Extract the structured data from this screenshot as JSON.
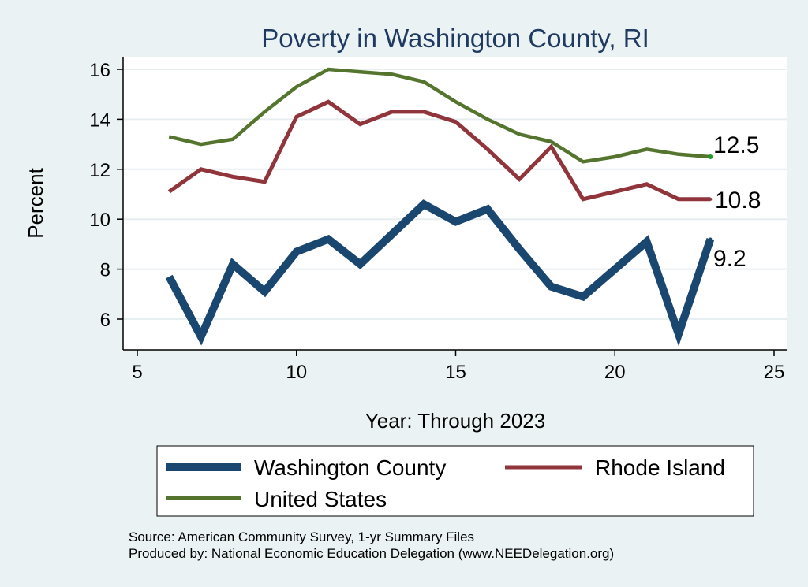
{
  "chart_data": {
    "type": "line",
    "title": "Poverty in Washington County, RI",
    "xlabel": "Year: Through 2023",
    "ylabel": "Percent",
    "xlim": [
      5,
      25
    ],
    "ylim": [
      5,
      16.3
    ],
    "xticks": [
      5,
      10,
      15,
      20,
      25
    ],
    "yticks": [
      6,
      8,
      10,
      12,
      14,
      16
    ],
    "grid": true,
    "legend_position": "bottom",
    "series": [
      {
        "name": "Washington County",
        "color": "#1a476f",
        "x": [
          6,
          7,
          8,
          9,
          10,
          11,
          12,
          13,
          14,
          15,
          16,
          17,
          18,
          19,
          20,
          21,
          22,
          23
        ],
        "values": [
          7.7,
          5.3,
          8.2,
          7.1,
          8.7,
          9.2,
          8.2,
          9.4,
          10.6,
          9.9,
          10.4,
          8.8,
          7.3,
          6.9,
          8.0,
          9.1,
          5.4,
          9.2
        ],
        "end_label": "9.2"
      },
      {
        "name": "Rhode Island",
        "color": "#90353b",
        "x": [
          6,
          7,
          8,
          9,
          10,
          11,
          12,
          13,
          14,
          15,
          16,
          17,
          18,
          19,
          20,
          21,
          22,
          23
        ],
        "values": [
          11.1,
          12.0,
          11.7,
          11.5,
          14.1,
          14.7,
          13.8,
          14.3,
          14.3,
          13.9,
          12.8,
          11.6,
          12.9,
          10.8,
          11.1,
          11.4,
          10.8,
          10.8
        ],
        "end_label": "10.8"
      },
      {
        "name": "United States",
        "color": "#55752f",
        "x": [
          6,
          7,
          8,
          9,
          10,
          11,
          12,
          13,
          14,
          15,
          16,
          17,
          18,
          19,
          20,
          21,
          22,
          23
        ],
        "values": [
          13.3,
          13.0,
          13.2,
          14.3,
          15.3,
          16.0,
          15.9,
          15.8,
          15.5,
          14.7,
          14.0,
          13.4,
          13.1,
          12.3,
          12.5,
          12.8,
          12.6,
          12.5
        ],
        "end_label": "12.5"
      }
    ],
    "notes": [
      "Source: American Community Survey, 1-yr Summary Files",
      "Produced by: National Economic Education Delegation (www.NEEDelegation.org)"
    ]
  }
}
